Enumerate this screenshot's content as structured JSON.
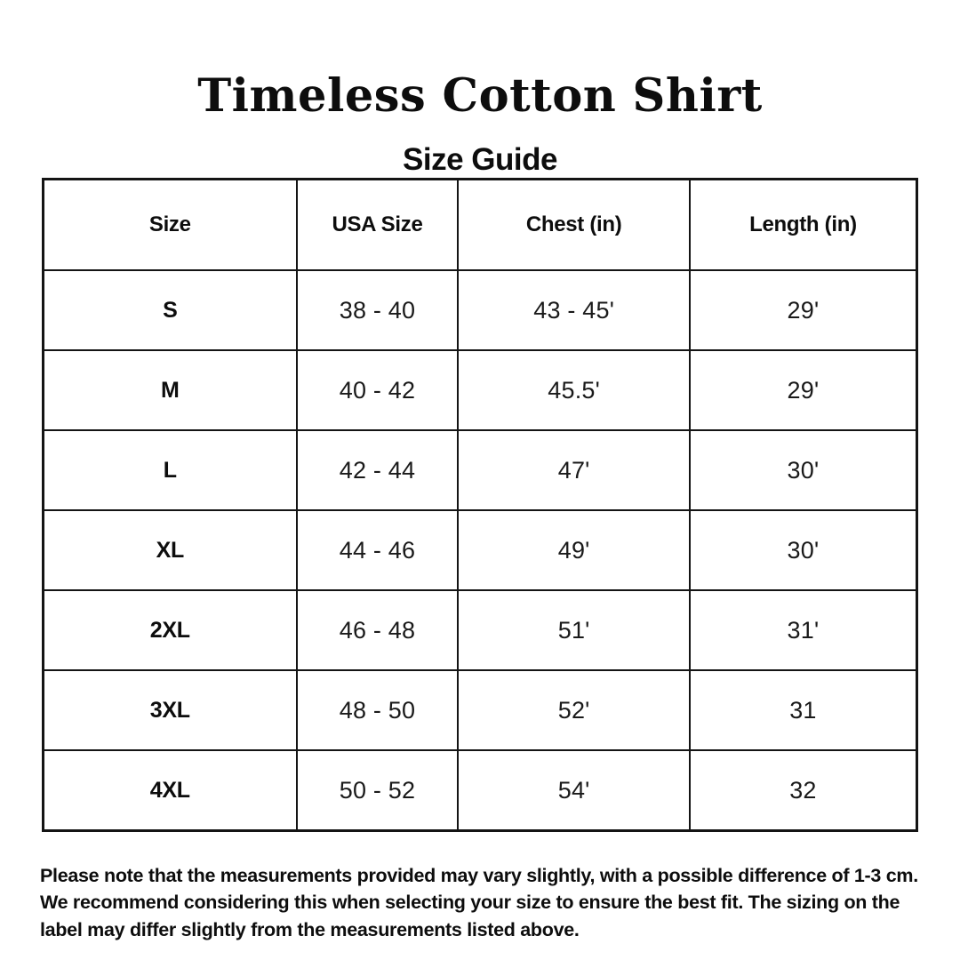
{
  "page": {
    "title": "Timeless Cotton Shirt",
    "subtitle": "Size Guide"
  },
  "size_table": {
    "columns": [
      "Size",
      "USA Size",
      "Chest (in)",
      "Length (in)"
    ],
    "rows": [
      {
        "size": "S",
        "usa_size": "38 - 40",
        "chest": "43 - 45'",
        "length": "29'"
      },
      {
        "size": "M",
        "usa_size": "40 - 42",
        "chest": "45.5'",
        "length": "29'"
      },
      {
        "size": "L",
        "usa_size": "42 - 44",
        "chest": "47'",
        "length": "30'"
      },
      {
        "size": "XL",
        "usa_size": "44 - 46",
        "chest": "49'",
        "length": "30'"
      },
      {
        "size": "2XL",
        "usa_size": "46 - 48",
        "chest": "51'",
        "length": "31'"
      },
      {
        "size": "3XL",
        "usa_size": "48 - 50",
        "chest": "52'",
        "length": "31"
      },
      {
        "size": "4XL",
        "usa_size": "50 - 52",
        "chest": "54'",
        "length": "32"
      }
    ]
  },
  "footer": {
    "note": "Please note that the measurements provided may vary slightly, with a possible difference of 1-3 cm. We recommend considering this when selecting your size to ensure the best fit. The sizing on the label may differ slightly from the measurements listed above."
  },
  "colors": {
    "background": "#ffffff",
    "text": "#0d0d0d",
    "border": "#141414"
  }
}
